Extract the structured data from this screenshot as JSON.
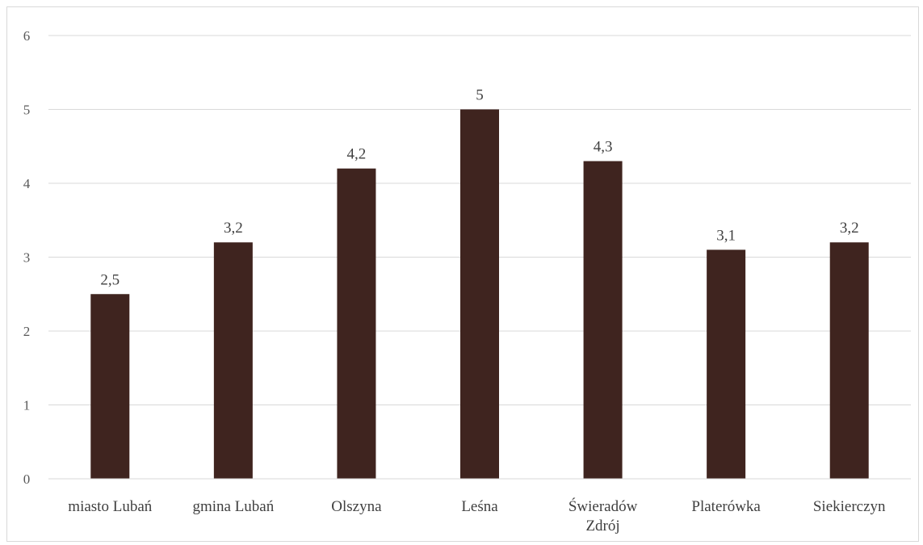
{
  "chart_data": {
    "type": "bar",
    "title": "",
    "xlabel": "",
    "ylabel": "",
    "ylim": [
      0,
      6
    ],
    "yticks": [
      "0",
      "1",
      "2",
      "3",
      "4",
      "5",
      "6"
    ],
    "grid": true,
    "legend": "none",
    "bar_color": "#3f241f",
    "categories": [
      [
        "miasto Lubań"
      ],
      [
        "gmina Lubań"
      ],
      [
        "Olszyna"
      ],
      [
        "Leśna"
      ],
      [
        "Świeradów",
        "Zdrój"
      ],
      [
        "Platerówka"
      ],
      [
        "Siekierczyn"
      ]
    ],
    "values": [
      2.5,
      3.2,
      4.2,
      5,
      4.3,
      3.1,
      3.2
    ],
    "data_labels": [
      "2,5",
      "3,2",
      "4,2",
      "5",
      "4,3",
      "3,1",
      "3,2"
    ]
  }
}
